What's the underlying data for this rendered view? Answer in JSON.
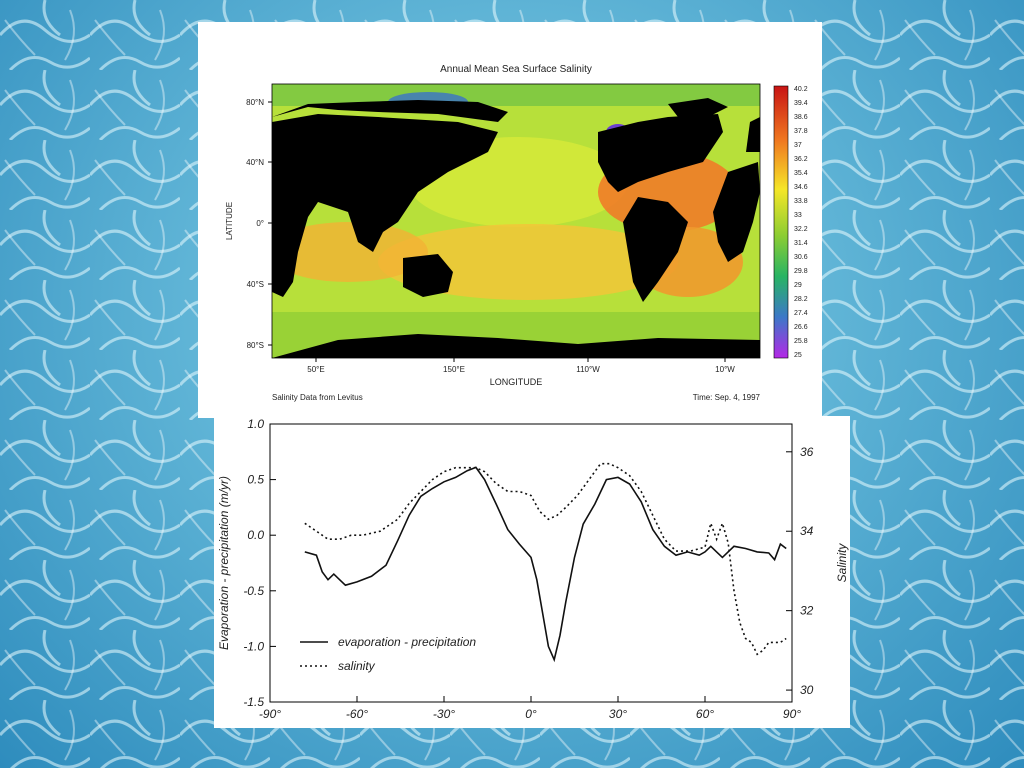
{
  "background": {
    "name": "sunlit-water-texture"
  },
  "chart_data": [
    {
      "type": "heatmap",
      "title": "Annual Mean Sea Surface Salinity",
      "xlabel": "LONGITUDE",
      "ylabel": "LATITUDE",
      "xtick_labels": [
        "50°E",
        "150°E",
        "110°W",
        "10°W"
      ],
      "ytick_labels": [
        "80°N",
        "40°N",
        "0°",
        "40°S",
        "80°S"
      ],
      "colorbar": {
        "labels": [
          "40.2",
          "39.4",
          "38.6",
          "37.8",
          "37",
          "36.2",
          "35.4",
          "34.6",
          "33.8",
          "33",
          "32.2",
          "31.4",
          "30.6",
          "29.8",
          "29",
          "28.2",
          "27.4",
          "26.6",
          "25.8",
          "25"
        ],
        "range": [
          25,
          40.2
        ],
        "colors": [
          "#d21414",
          "#f07820",
          "#f5e628",
          "#8ccd32",
          "#28b464",
          "#3c78c8",
          "#b428e6"
        ]
      },
      "footer_left": "Salinity Data from Levitus",
      "footer_right": "Time: Sep. 4, 1997",
      "land_color": "#000000"
    },
    {
      "type": "line",
      "xlim": [
        -90,
        90
      ],
      "xticks": [
        -90,
        -60,
        -30,
        0,
        30,
        60,
        90
      ],
      "xtick_labels": [
        "-90°",
        "-60°",
        "-30°",
        "0°",
        "30°",
        "60°",
        "90°"
      ],
      "ylim_left": [
        -1.5,
        1.0
      ],
      "yticks_left": [
        "1.0",
        "0.5",
        "0.0",
        "-0.5",
        "-1.0",
        "-1.5"
      ],
      "ylim_right": [
        29.7,
        36.7
      ],
      "yticks_right": [
        "36",
        "34",
        "32",
        "30"
      ],
      "ylabel": "Evaporation - precipitation (m/yr)",
      "ylabel_right": "Salinity",
      "legend": [
        "evaporation - precipitation",
        "salinity"
      ],
      "series": [
        {
          "name": "evaporation - precipitation",
          "axis": "left",
          "style": "solid",
          "x": [
            -78,
            -74,
            -72,
            -70,
            -68,
            -66,
            -64,
            -60,
            -55,
            -50,
            -46,
            -42,
            -38,
            -34,
            -30,
            -26,
            -22,
            -19,
            -16,
            -12,
            -8,
            -4,
            0,
            2,
            4,
            6,
            8,
            10,
            12,
            15,
            18,
            22,
            26,
            30,
            34,
            38,
            42,
            46,
            50,
            54,
            58,
            60,
            62,
            64,
            66,
            70,
            74,
            78,
            82,
            84,
            86,
            88
          ],
          "y": [
            -0.15,
            -0.18,
            -0.33,
            -0.4,
            -0.35,
            -0.4,
            -0.45,
            -0.42,
            -0.37,
            -0.27,
            -0.05,
            0.18,
            0.35,
            0.42,
            0.48,
            0.52,
            0.58,
            0.61,
            0.5,
            0.28,
            0.05,
            -0.08,
            -0.2,
            -0.4,
            -0.7,
            -1.0,
            -1.12,
            -0.9,
            -0.6,
            -0.2,
            0.1,
            0.28,
            0.5,
            0.52,
            0.46,
            0.3,
            0.05,
            -0.1,
            -0.18,
            -0.15,
            -0.18,
            -0.15,
            -0.1,
            -0.15,
            -0.2,
            -0.1,
            -0.12,
            -0.15,
            -0.16,
            -0.22,
            -0.08,
            -0.12
          ]
        },
        {
          "name": "salinity",
          "axis": "right",
          "style": "dotted",
          "x": [
            -78,
            -74,
            -70,
            -66,
            -62,
            -58,
            -52,
            -46,
            -42,
            -38,
            -34,
            -30,
            -26,
            -22,
            -19,
            -16,
            -12,
            -8,
            -4,
            0,
            3,
            6,
            9,
            12,
            16,
            20,
            24,
            27,
            30,
            34,
            38,
            42,
            46,
            50,
            55,
            60,
            62,
            64,
            66,
            68,
            70,
            72,
            74,
            76,
            78,
            80,
            82,
            86,
            88
          ],
          "y": [
            34.2,
            34.0,
            33.8,
            33.8,
            33.9,
            33.9,
            34.0,
            34.3,
            34.7,
            35.0,
            35.3,
            35.5,
            35.6,
            35.6,
            35.6,
            35.5,
            35.2,
            35.0,
            35.0,
            34.9,
            34.5,
            34.3,
            34.4,
            34.6,
            34.9,
            35.3,
            35.7,
            35.7,
            35.6,
            35.4,
            35.0,
            34.4,
            33.8,
            33.5,
            33.5,
            33.6,
            34.2,
            33.8,
            34.2,
            33.7,
            32.5,
            31.7,
            31.3,
            31.2,
            30.9,
            31.0,
            31.2,
            31.2,
            31.3
          ]
        }
      ]
    }
  ]
}
